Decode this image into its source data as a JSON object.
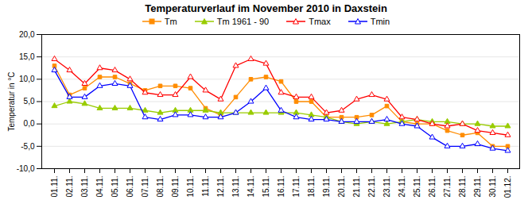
{
  "chart_data": {
    "type": "line",
    "title": "Temperaturverlauf im November 2010 in Daxstein",
    "ylabel": "Temperatur in °C",
    "categories": [
      "01.11.",
      "02.11.",
      "03.11.",
      "04.11.",
      "05.11.",
      "06.11.",
      "07.11.",
      "08.11.",
      "09.11.",
      "10.11.",
      "11.11.",
      "12.11.",
      "13.11.",
      "14.11.",
      "15.11.",
      "16.11.",
      "17.11.",
      "18.11.",
      "19.11.",
      "20.11.",
      "21.11.",
      "22.11.",
      "23.11.",
      "24.11.",
      "25.11.",
      "26.11.",
      "27.11.",
      "28.11.",
      "29.11.",
      "30.11.",
      "01.12."
    ],
    "series": [
      {
        "name": "Tm",
        "color": "#FF8C00",
        "marker": "square",
        "values": [
          13.0,
          6.5,
          8.0,
          10.5,
          10.5,
          9.0,
          7.5,
          8.5,
          8.5,
          8.0,
          3.5,
          2.0,
          6.0,
          10.0,
          10.5,
          9.5,
          5.0,
          5.0,
          1.5,
          1.5,
          1.5,
          2.0,
          4.0,
          0.5,
          0.0,
          0.0,
          -1.5,
          -2.5,
          -2.0,
          -5.0,
          -5.0
        ]
      },
      {
        "name": "Tm 1961 - 90",
        "color": "#99CC00",
        "marker": "triangle",
        "values": [
          4.0,
          5.0,
          4.5,
          3.5,
          3.5,
          3.5,
          3.0,
          2.5,
          3.0,
          3.0,
          3.0,
          2.5,
          2.5,
          2.5,
          2.5,
          2.5,
          2.5,
          2.0,
          1.5,
          0.5,
          0.0,
          0.5,
          0.0,
          0.5,
          1.0,
          0.5,
          0.5,
          0.0,
          0.0,
          -0.5,
          -0.5
        ]
      },
      {
        "name": "Tmax",
        "color": "#FF0000",
        "marker": "triangle-open",
        "values": [
          14.5,
          12.0,
          9.0,
          12.5,
          12.0,
          10.0,
          7.0,
          6.5,
          6.5,
          10.5,
          7.5,
          5.5,
          13.0,
          14.5,
          13.5,
          7.0,
          6.0,
          6.0,
          2.5,
          3.0,
          5.5,
          6.5,
          5.5,
          1.5,
          1.0,
          0.0,
          -0.5,
          0.0,
          -1.5,
          -2.0,
          -2.5
        ]
      },
      {
        "name": "Tmin",
        "color": "#0000FF",
        "marker": "triangle-open",
        "values": [
          12.0,
          6.0,
          6.0,
          8.5,
          9.0,
          8.5,
          1.5,
          1.0,
          2.0,
          2.0,
          1.5,
          1.5,
          2.5,
          5.0,
          8.0,
          3.0,
          1.5,
          1.0,
          1.0,
          0.5,
          0.5,
          0.5,
          1.0,
          0.0,
          -0.5,
          -3.0,
          -5.0,
          -5.0,
          -4.5,
          -5.5,
          -6.0
        ]
      }
    ],
    "ylim": [
      -10.0,
      20.0
    ],
    "yticks": [
      {
        "value": -10.0,
        "label": "-10,0"
      },
      {
        "value": -5.0,
        "label": "-5,0"
      },
      {
        "value": 0.0,
        "label": "0,0"
      },
      {
        "value": 5.0,
        "label": "5,0"
      },
      {
        "value": 10.0,
        "label": "10,0"
      },
      {
        "value": 15.0,
        "label": "15,0"
      },
      {
        "value": 20.0,
        "label": "20,0"
      }
    ],
    "grid": true,
    "legend": "top"
  }
}
